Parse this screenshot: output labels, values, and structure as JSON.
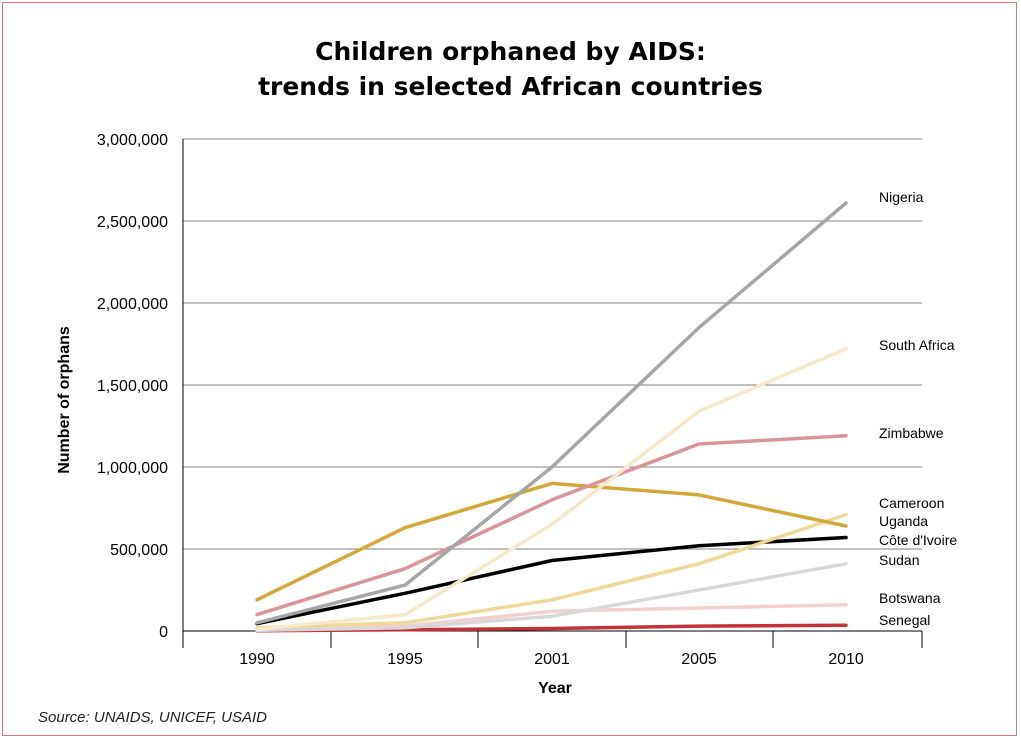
{
  "chart_data": {
    "type": "line",
    "title": "Children orphaned by AIDS:",
    "subtitle": "trends in selected African countries",
    "xlabel": "Year",
    "ylabel": "Number of orphans",
    "categories": [
      "1990",
      "1995",
      "2001",
      "2005",
      "2010"
    ],
    "ylim": [
      0,
      3000000
    ],
    "y_ticks": [
      0,
      500000,
      1000000,
      1500000,
      2000000,
      2500000,
      3000000
    ],
    "y_tick_labels": [
      "0",
      "500,000",
      "1,000,000",
      "1,500,000",
      "2,000,000",
      "2,500,000",
      "3,000,000"
    ],
    "grid": "horizontal",
    "legend": "labels at line ends (right)",
    "series": [
      {
        "name": "Nigeria",
        "values": [
          50000,
          280000,
          1000000,
          1850000,
          2610000
        ],
        "color": "#a6a6a6"
      },
      {
        "name": "South Africa",
        "values": [
          10000,
          100000,
          650000,
          1340000,
          1720000
        ],
        "color": "#f7e8c8"
      },
      {
        "name": "Zimbabwe",
        "values": [
          100000,
          380000,
          800000,
          1140000,
          1190000
        ],
        "color": "#d9959a"
      },
      {
        "name": "Cameroon",
        "values": [
          190000,
          630000,
          900000,
          830000,
          640000
        ],
        "color": "#d4a838"
      },
      {
        "name": "Uganda",
        "values": [
          20000,
          50000,
          190000,
          410000,
          710000
        ],
        "color": "#efd898"
      },
      {
        "name": "Côte d'Ivoire",
        "values": [
          45000,
          230000,
          430000,
          520000,
          570000
        ],
        "color": "#000000"
      },
      {
        "name": "Sudan",
        "values": [
          5000,
          20000,
          90000,
          250000,
          410000
        ],
        "color": "#d8d8d8"
      },
      {
        "name": "Botswana",
        "values": [
          5000,
          30000,
          120000,
          140000,
          160000
        ],
        "color": "#f2d0d2"
      },
      {
        "name": "Senegal",
        "values": [
          2000,
          8000,
          15000,
          30000,
          35000
        ],
        "color": "#c0333b"
      }
    ],
    "end_labels": [
      {
        "series": "Nigeria",
        "text": "Nigeria"
      },
      {
        "series": "South Africa",
        "text": "South Africa"
      },
      {
        "series": "Zimbabwe",
        "text": "Zimbabwe"
      },
      {
        "series": "Cameroon",
        "text": "Cameroon"
      },
      {
        "series": "Uganda",
        "text": "Uganda"
      },
      {
        "series": "Côte d'Ivoire",
        "text": "Côte d'Ivoire"
      },
      {
        "series": "Sudan",
        "text": "Sudan"
      },
      {
        "series": "Botswana",
        "text": "Botswana"
      },
      {
        "series": "Senegal",
        "text": "Senegal"
      }
    ],
    "source": "Source: UNAIDS, UNICEF, USAID"
  },
  "colors": {
    "frame_border": "#e0707a",
    "grid": "#808080",
    "axis": "#000000"
  }
}
